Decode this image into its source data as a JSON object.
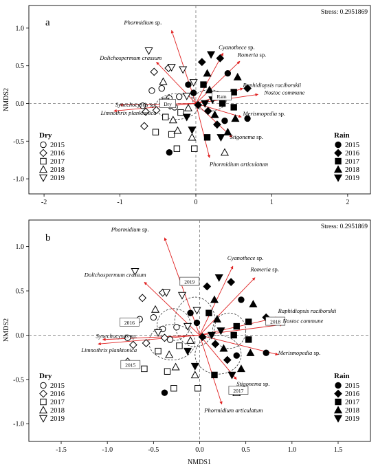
{
  "xlabel": "NMDS1",
  "ylabel": "NMDS2",
  "chart_data": [
    {
      "type": "scatter",
      "panel": "a",
      "stress": "Stress: 0.2951869",
      "xlabel": "",
      "ylabel": "NMDS2",
      "xlim": [
        -2.2,
        2.3
      ],
      "ylim": [
        -1.2,
        1.3
      ],
      "xticks": [
        "-2",
        "-1",
        "0",
        "1",
        "2"
      ],
      "xtick_values": [
        -2,
        -1,
        0,
        1,
        2
      ],
      "yticks": [
        "-1.0",
        "-0.5",
        "0.0",
        "0.5",
        "1.0"
      ],
      "ytick_values": [
        -1.0,
        -0.5,
        0.0,
        0.5,
        1.0
      ],
      "legend_dry": {
        "title": "Dry",
        "items": [
          "2015",
          "2016",
          "2017",
          "2018",
          "2019"
        ]
      },
      "legend_rain": {
        "title": "Rain",
        "items": [
          "2015",
          "2016",
          "2017",
          "2018",
          "2019"
        ]
      },
      "arrows": [
        {
          "label": "Phormidium",
          "suffix": " sp.",
          "x": -0.32,
          "y": 0.97
        },
        {
          "label": "Dolichospermum crassum",
          "suffix": "",
          "x": -0.52,
          "y": 0.55
        },
        {
          "label": "Cyanothece",
          "suffix": " sp.",
          "x": 0.36,
          "y": 0.67
        },
        {
          "label": "Romeria",
          "suffix": " sp.",
          "x": 0.58,
          "y": 0.56
        },
        {
          "label": "Raphidiopsis raciborskii",
          "suffix": "",
          "x": 0.62,
          "y": 0.2
        },
        {
          "label": "Nostoc commune",
          "suffix": "",
          "x": 0.82,
          "y": 0.12
        },
        {
          "label": "Merismopedia",
          "suffix": " sp.",
          "x": 0.6,
          "y": -0.18
        },
        {
          "label": "Stigonema",
          "suffix": " sp.",
          "x": 0.48,
          "y": -0.45
        },
        {
          "label": "Phormidium articulatum",
          "suffix": "",
          "x": 0.18,
          "y": -0.72
        },
        {
          "label": "Synechocystis",
          "suffix": " sp.",
          "x": -1.0,
          "y": -0.02
        },
        {
          "label": "Limnothrix planktonica",
          "suffix": "",
          "x": -1.08,
          "y": -0.1
        }
      ],
      "centroid_labels": [
        "Dry",
        "Rain"
      ],
      "centroids": [
        {
          "x": -0.25,
          "y": -0.04,
          "rx": 0.28,
          "ry": 0.17
        },
        {
          "x": 0.18,
          "y": 0.04,
          "rx": 0.22,
          "ry": 0.14
        }
      ],
      "points": [
        {
          "season": "dry",
          "year": "2015",
          "x": -0.58,
          "y": 0.17
        },
        {
          "season": "dry",
          "year": "2015",
          "x": -0.45,
          "y": 0.2
        },
        {
          "season": "dry",
          "year": "2015",
          "x": -0.7,
          "y": -0.03
        },
        {
          "season": "dry",
          "year": "2015",
          "x": -0.35,
          "y": 0.07
        },
        {
          "season": "dry",
          "year": "2015",
          "x": -0.28,
          "y": -0.05
        },
        {
          "season": "dry",
          "year": "2015",
          "x": -0.22,
          "y": 0.09
        },
        {
          "season": "dry",
          "year": "2016",
          "x": -0.55,
          "y": 0.42
        },
        {
          "season": "dry",
          "year": "2016",
          "x": -0.36,
          "y": 0.47
        },
        {
          "season": "dry",
          "year": "2016",
          "x": -0.66,
          "y": -0.11
        },
        {
          "season": "dry",
          "year": "2016",
          "x": -0.68,
          "y": -0.3
        },
        {
          "season": "dry",
          "year": "2016",
          "x": -0.52,
          "y": -0.09
        },
        {
          "season": "dry",
          "year": "2016",
          "x": -0.34,
          "y": -0.03
        },
        {
          "season": "dry",
          "year": "2017",
          "x": -0.53,
          "y": -0.38
        },
        {
          "season": "dry",
          "year": "2017",
          "x": -0.32,
          "y": -0.41
        },
        {
          "season": "dry",
          "year": "2017",
          "x": -0.25,
          "y": -0.6
        },
        {
          "season": "dry",
          "year": "2017",
          "x": -0.02,
          "y": -0.6
        },
        {
          "season": "dry",
          "year": "2017",
          "x": -0.4,
          "y": -0.18
        },
        {
          "season": "dry",
          "year": "2017",
          "x": -0.2,
          "y": -0.12
        },
        {
          "season": "dry",
          "year": "2018",
          "x": -0.43,
          "y": 0.29
        },
        {
          "season": "dry",
          "year": "2018",
          "x": -0.24,
          "y": -0.36
        },
        {
          "season": "dry",
          "year": "2018",
          "x": -0.05,
          "y": -0.45
        },
        {
          "season": "dry",
          "year": "2018",
          "x": 0.38,
          "y": -0.65
        },
        {
          "season": "dry",
          "year": "2018",
          "x": -0.1,
          "y": -0.06
        },
        {
          "season": "dry",
          "year": "2018",
          "x": -0.3,
          "y": -0.22
        },
        {
          "season": "dry",
          "year": "2019",
          "x": -0.62,
          "y": 0.7
        },
        {
          "season": "dry",
          "year": "2019",
          "x": -0.32,
          "y": 0.48
        },
        {
          "season": "dry",
          "year": "2019",
          "x": -0.17,
          "y": 0.45
        },
        {
          "season": "dry",
          "year": "2019",
          "x": -0.4,
          "y": 0.03
        },
        {
          "season": "dry",
          "year": "2019",
          "x": -0.12,
          "y": 0.1
        },
        {
          "season": "dry",
          "year": "2019",
          "x": -0.03,
          "y": 0.28
        },
        {
          "season": "rain",
          "year": "2015",
          "x": -0.35,
          "y": -0.65
        },
        {
          "season": "rain",
          "year": "2015",
          "x": -0.1,
          "y": 0.25
        },
        {
          "season": "rain",
          "year": "2015",
          "x": -0.03,
          "y": 0.14
        },
        {
          "season": "rain",
          "year": "2015",
          "x": 0.42,
          "y": 0.4
        },
        {
          "season": "rain",
          "year": "2015",
          "x": 0.38,
          "y": -0.23
        },
        {
          "season": "rain",
          "year": "2015",
          "x": 0.68,
          "y": -0.2
        },
        {
          "season": "rain",
          "year": "2016",
          "x": 0.08,
          "y": 0.55
        },
        {
          "season": "rain",
          "year": "2016",
          "x": 0.03,
          "y": -0.02
        },
        {
          "season": "rain",
          "year": "2016",
          "x": 0.16,
          "y": -0.1
        },
        {
          "season": "rain",
          "year": "2016",
          "x": 0.68,
          "y": 0.2
        },
        {
          "season": "rain",
          "year": "2016",
          "x": 0.28,
          "y": -0.28
        },
        {
          "season": "rain",
          "year": "2016",
          "x": 0.32,
          "y": 0.6
        },
        {
          "season": "rain",
          "year": "2017",
          "x": 0.15,
          "y": -0.45
        },
        {
          "season": "rain",
          "year": "2017",
          "x": 0.35,
          "y": 0.0
        },
        {
          "season": "rain",
          "year": "2017",
          "x": 0.5,
          "y": -0.05
        },
        {
          "season": "rain",
          "year": "2017",
          "x": 0.5,
          "y": 0.15
        },
        {
          "season": "rain",
          "year": "2017",
          "x": 0.1,
          "y": 0.25
        },
        {
          "season": "rain",
          "year": "2017",
          "x": 0.38,
          "y": 0.1
        },
        {
          "season": "rain",
          "year": "2018",
          "x": 0.15,
          "y": 0.4
        },
        {
          "season": "rain",
          "year": "2018",
          "x": 0.42,
          "y": -0.38
        },
        {
          "season": "rain",
          "year": "2018",
          "x": 0.52,
          "y": -0.2
        },
        {
          "season": "rain",
          "year": "2018",
          "x": 0.18,
          "y": 0.18
        },
        {
          "season": "rain",
          "year": "2018",
          "x": 0.55,
          "y": 0.35
        },
        {
          "season": "rain",
          "year": "2018",
          "x": 0.25,
          "y": -0.15
        },
        {
          "season": "rain",
          "year": "2019",
          "x": 0.2,
          "y": 0.65
        },
        {
          "season": "rain",
          "year": "2019",
          "x": -0.05,
          "y": -0.35
        },
        {
          "season": "rain",
          "year": "2019",
          "x": 0.12,
          "y": 0.0
        },
        {
          "season": "rain",
          "year": "2019",
          "x": 0.33,
          "y": -0.45
        },
        {
          "season": "rain",
          "year": "2019",
          "x": 0.22,
          "y": 0.05
        },
        {
          "season": "rain",
          "year": "2019",
          "x": -0.12,
          "y": -0.18
        }
      ]
    },
    {
      "type": "scatter",
      "panel": "b",
      "stress": "Stress: 0.2951869",
      "xlabel": "NMDS1",
      "ylabel": "NMDS2",
      "xlim": [
        -1.85,
        1.85
      ],
      "ylim": [
        -1.2,
        1.3
      ],
      "xticks": [
        "-1.5",
        "-1.0",
        "-0.5",
        "0.0",
        "0.5",
        "1.0",
        "1.5"
      ],
      "xtick_values": [
        -1.5,
        -1.0,
        -0.5,
        0.0,
        0.5,
        1.0,
        1.5
      ],
      "yticks": [
        "-1.0",
        "-0.5",
        "0.0",
        "0.5",
        "1.0"
      ],
      "ytick_values": [
        -1.0,
        -0.5,
        0.0,
        0.5,
        1.0
      ],
      "legend_dry": {
        "title": "Dry",
        "items": [
          "2015",
          "2016",
          "2017",
          "2018",
          "2019"
        ]
      },
      "legend_rain": {
        "title": "Rain",
        "items": [
          "2015",
          "2016",
          "2017",
          "2018",
          "2019"
        ]
      },
      "arrows": [
        {
          "label": "Phormidium",
          "suffix": " sp.",
          "x": -0.38,
          "y": 1.1
        },
        {
          "label": "Dolichospermum crassum",
          "suffix": "",
          "x": -0.6,
          "y": 0.6
        },
        {
          "label": "Cyanothece",
          "suffix": " sp.",
          "x": 0.36,
          "y": 0.78
        },
        {
          "label": "Romeria",
          "suffix": " sp.",
          "x": 0.6,
          "y": 0.65
        },
        {
          "label": "Raphidiopsis raciborskii",
          "suffix": "",
          "x": 0.85,
          "y": 0.2
        },
        {
          "label": "Nostoc commune",
          "suffix": "",
          "x": 0.9,
          "y": 0.12
        },
        {
          "label": "Merismopedia",
          "suffix": " sp.",
          "x": 0.85,
          "y": -0.22
        },
        {
          "label": "Stigonema",
          "suffix": " sp.",
          "x": 0.4,
          "y": -0.5
        },
        {
          "label": "Phormidium articulatum",
          "suffix": "",
          "x": 0.24,
          "y": -0.78
        },
        {
          "label": "Synechocystis",
          "suffix": " sp.",
          "x": -1.05,
          "y": -0.05
        },
        {
          "label": "Limnothrix planktonica",
          "suffix": "",
          "x": -1.1,
          "y": -0.1
        }
      ],
      "centroid_labels": [
        "2015",
        "2016",
        "2017",
        "2018",
        "2019"
      ],
      "centroids": [
        {
          "x": -0.3,
          "y": -0.08,
          "rx": 0.25,
          "ry": 0.2
        },
        {
          "x": -0.28,
          "y": 0.12,
          "rx": 0.18,
          "ry": 0.18
        },
        {
          "x": 0.2,
          "y": -0.22,
          "rx": 0.25,
          "ry": 0.22
        },
        {
          "x": 0.32,
          "y": 0.05,
          "rx": 0.18,
          "ry": 0.2
        },
        {
          "x": -0.05,
          "y": 0.15,
          "rx": 0.22,
          "ry": 0.28
        }
      ],
      "points": [
        {
          "season": "dry",
          "year": "2015",
          "x": -0.65,
          "y": 0.18
        },
        {
          "season": "dry",
          "year": "2015",
          "x": -0.5,
          "y": 0.2
        },
        {
          "season": "dry",
          "year": "2015",
          "x": -0.78,
          "y": -0.03
        },
        {
          "season": "dry",
          "year": "2015",
          "x": -0.4,
          "y": 0.07
        },
        {
          "season": "dry",
          "year": "2015",
          "x": -0.32,
          "y": -0.05
        },
        {
          "season": "dry",
          "year": "2015",
          "x": -0.25,
          "y": 0.09
        },
        {
          "season": "dry",
          "year": "2016",
          "x": -0.62,
          "y": 0.42
        },
        {
          "season": "dry",
          "year": "2016",
          "x": -0.4,
          "y": 0.48
        },
        {
          "season": "dry",
          "year": "2016",
          "x": -0.72,
          "y": -0.11
        },
        {
          "season": "dry",
          "year": "2016",
          "x": -0.78,
          "y": -0.3
        },
        {
          "season": "dry",
          "year": "2016",
          "x": -0.58,
          "y": -0.09
        },
        {
          "season": "dry",
          "year": "2016",
          "x": -0.38,
          "y": -0.03
        },
        {
          "season": "dry",
          "year": "2017",
          "x": -0.6,
          "y": -0.38
        },
        {
          "season": "dry",
          "year": "2017",
          "x": -0.35,
          "y": -0.41
        },
        {
          "season": "dry",
          "year": "2017",
          "x": -0.28,
          "y": -0.6
        },
        {
          "season": "dry",
          "year": "2017",
          "x": -0.02,
          "y": -0.6
        },
        {
          "season": "dry",
          "year": "2017",
          "x": -0.45,
          "y": -0.18
        },
        {
          "season": "dry",
          "year": "2017",
          "x": -0.22,
          "y": -0.12
        },
        {
          "season": "dry",
          "year": "2018",
          "x": -0.48,
          "y": 0.29
        },
        {
          "season": "dry",
          "year": "2018",
          "x": -0.26,
          "y": -0.36
        },
        {
          "season": "dry",
          "year": "2018",
          "x": -0.05,
          "y": -0.45
        },
        {
          "season": "dry",
          "year": "2018",
          "x": 0.4,
          "y": -0.65
        },
        {
          "season": "dry",
          "year": "2018",
          "x": -0.1,
          "y": -0.06
        },
        {
          "season": "dry",
          "year": "2018",
          "x": -0.33,
          "y": -0.22
        },
        {
          "season": "dry",
          "year": "2019",
          "x": -0.7,
          "y": 0.72
        },
        {
          "season": "dry",
          "year": "2019",
          "x": -0.36,
          "y": 0.48
        },
        {
          "season": "dry",
          "year": "2019",
          "x": -0.19,
          "y": 0.45
        },
        {
          "season": "dry",
          "year": "2019",
          "x": -0.45,
          "y": 0.03
        },
        {
          "season": "dry",
          "year": "2019",
          "x": -0.13,
          "y": 0.1
        },
        {
          "season": "dry",
          "year": "2019",
          "x": -0.03,
          "y": 0.28
        },
        {
          "season": "rain",
          "year": "2015",
          "x": -0.38,
          "y": -0.65
        },
        {
          "season": "rain",
          "year": "2015",
          "x": -0.1,
          "y": 0.25
        },
        {
          "season": "rain",
          "year": "2015",
          "x": -0.03,
          "y": 0.14
        },
        {
          "season": "rain",
          "year": "2015",
          "x": 0.45,
          "y": 0.4
        },
        {
          "season": "rain",
          "year": "2015",
          "x": 0.4,
          "y": -0.23
        },
        {
          "season": "rain",
          "year": "2015",
          "x": 0.72,
          "y": -0.2
        },
        {
          "season": "rain",
          "year": "2016",
          "x": 0.08,
          "y": 0.55
        },
        {
          "season": "rain",
          "year": "2016",
          "x": 0.03,
          "y": -0.02
        },
        {
          "season": "rain",
          "year": "2016",
          "x": 0.17,
          "y": -0.1
        },
        {
          "season": "rain",
          "year": "2016",
          "x": 0.72,
          "y": 0.2
        },
        {
          "season": "rain",
          "year": "2016",
          "x": 0.3,
          "y": -0.28
        },
        {
          "season": "rain",
          "year": "2016",
          "x": 0.34,
          "y": 0.6
        },
        {
          "season": "rain",
          "year": "2017",
          "x": 0.16,
          "y": -0.45
        },
        {
          "season": "rain",
          "year": "2017",
          "x": 0.37,
          "y": 0.0
        },
        {
          "season": "rain",
          "year": "2017",
          "x": 0.53,
          "y": -0.05
        },
        {
          "season": "rain",
          "year": "2017",
          "x": 0.53,
          "y": 0.15
        },
        {
          "season": "rain",
          "year": "2017",
          "x": 0.1,
          "y": 0.25
        },
        {
          "season": "rain",
          "year": "2017",
          "x": 0.4,
          "y": 0.1
        },
        {
          "season": "rain",
          "year": "2018",
          "x": 0.16,
          "y": 0.4
        },
        {
          "season": "rain",
          "year": "2018",
          "x": 0.45,
          "y": -0.38
        },
        {
          "season": "rain",
          "year": "2018",
          "x": 0.55,
          "y": -0.2
        },
        {
          "season": "rain",
          "year": "2018",
          "x": 0.19,
          "y": 0.18
        },
        {
          "season": "rain",
          "year": "2018",
          "x": 0.58,
          "y": 0.35
        },
        {
          "season": "rain",
          "year": "2018",
          "x": 0.26,
          "y": -0.15
        },
        {
          "season": "rain",
          "year": "2019",
          "x": 0.21,
          "y": 0.65
        },
        {
          "season": "rain",
          "year": "2019",
          "x": -0.05,
          "y": -0.35
        },
        {
          "season": "rain",
          "year": "2019",
          "x": 0.13,
          "y": 0.0
        },
        {
          "season": "rain",
          "year": "2019",
          "x": 0.35,
          "y": -0.45
        },
        {
          "season": "rain",
          "year": "2019",
          "x": 0.23,
          "y": 0.05
        },
        {
          "season": "rain",
          "year": "2019",
          "x": -0.13,
          "y": -0.18
        }
      ]
    }
  ]
}
